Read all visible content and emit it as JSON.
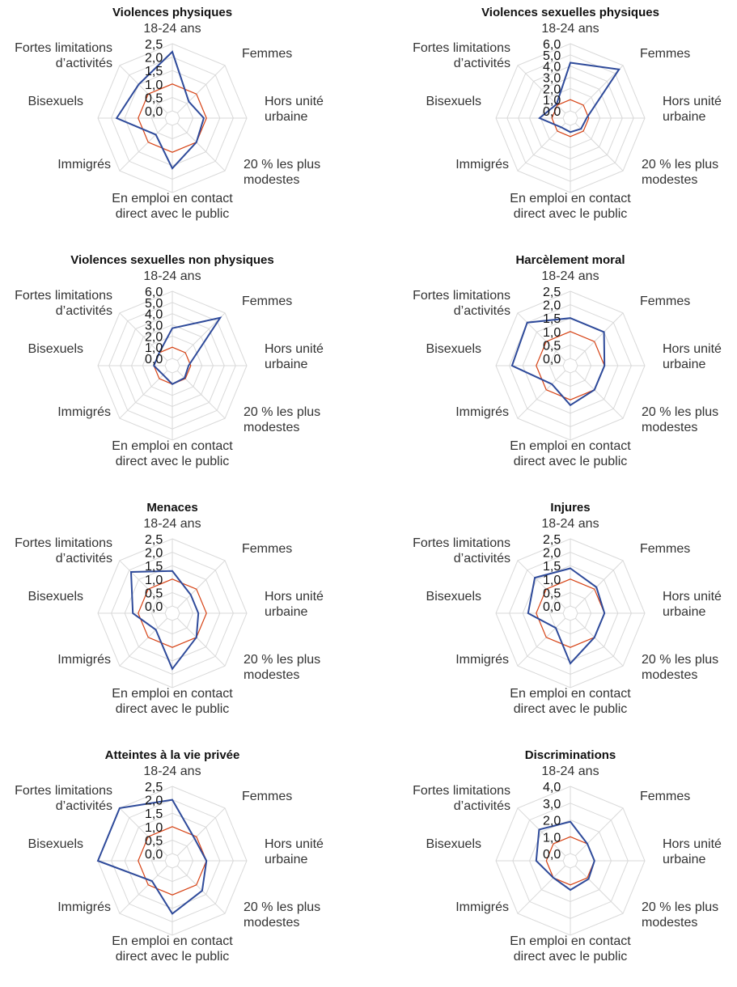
{
  "colors": {
    "series_main": "#2e4a9a",
    "series_ref": "#d84315",
    "grid": "#d9d9d9"
  },
  "axis_labels": [
    [
      "18-24 ans"
    ],
    [
      "Femmes"
    ],
    [
      "Hors unité",
      "urbaine"
    ],
    [
      "20 % les plus",
      "modestes"
    ],
    [
      "En emploi en contact",
      "direct avec le public"
    ],
    [
      "Immigrés"
    ],
    [
      "Bisexuels"
    ],
    [
      "Fortes limitations",
      "d’activités"
    ]
  ],
  "chart_data": [
    {
      "type": "radar",
      "title": "Violences physiques",
      "ticks": [
        "0,0",
        "0,5",
        "1,0",
        "1,5",
        "2,0",
        "2,5"
      ],
      "rmax": 2.5,
      "series": [
        {
          "values": [
            2.2,
            0.6,
            0.9,
            1.0,
            1.6,
            0.6,
            1.8,
            1.5
          ]
        },
        {
          "values": [
            1,
            1,
            1,
            1,
            1,
            1,
            1,
            1
          ]
        }
      ]
    },
    {
      "type": "radar",
      "title": "Violences sexuelles physiques",
      "ticks": [
        "0,0",
        "1,0",
        "2,0",
        "3,0",
        "4,0",
        "5,0",
        "6,0"
      ],
      "rmax": 6.0,
      "series": [
        {
          "values": [
            4.3,
            5.5,
            0.8,
            0.7,
            0.6,
            0.5,
            2.1,
            1.1
          ]
        },
        {
          "values": [
            1,
            1,
            1,
            1,
            1,
            1,
            1,
            1
          ]
        }
      ]
    },
    {
      "type": "radar",
      "title": "Violences sexuelles non physiques",
      "ticks": [
        "0,0",
        "1,0",
        "2,0",
        "3,0",
        "4,0",
        "5,0",
        "6,0"
      ],
      "rmax": 6.0,
      "series": [
        {
          "values": [
            2.7,
            5.4,
            0.8,
            0.9,
            1.0,
            0.5,
            1.0,
            1.0
          ]
        },
        {
          "values": [
            1,
            1,
            1,
            1,
            1,
            1,
            1,
            1
          ]
        }
      ]
    },
    {
      "type": "radar",
      "title": "Harcèlement moral",
      "ticks": [
        "0,0",
        "0,5",
        "1,0",
        "1,5",
        "2,0",
        "2,5"
      ],
      "rmax": 2.5,
      "series": [
        {
          "values": [
            1.5,
            1.5,
            1.0,
            1.0,
            1.2,
            0.7,
            1.9,
            2.0
          ]
        },
        {
          "values": [
            1,
            1,
            1,
            1,
            1,
            1,
            1,
            1
          ]
        }
      ]
    },
    {
      "type": "radar",
      "title": "Menaces",
      "ticks": [
        "0,0",
        "0,5",
        "1,0",
        "1,5",
        "2,0",
        "2,5"
      ],
      "rmax": 2.5,
      "series": [
        {
          "values": [
            1.3,
            0.7,
            0.7,
            1.0,
            1.8,
            0.6,
            1.2,
            1.9
          ]
        },
        {
          "values": [
            1,
            1,
            1,
            1,
            1,
            1,
            1,
            1
          ]
        }
      ]
    },
    {
      "type": "radar",
      "title": "Injures",
      "ticks": [
        "0,0",
        "0,5",
        "1,0",
        "1,5",
        "2,0",
        "2,5"
      ],
      "rmax": 2.5,
      "series": [
        {
          "values": [
            1.4,
            1.1,
            1.0,
            1.0,
            1.6,
            0.5,
            1.3,
            1.6
          ]
        },
        {
          "values": [
            1,
            1,
            1,
            1,
            1,
            1,
            1,
            1
          ]
        }
      ]
    },
    {
      "type": "radar",
      "title": "Atteintes à la vie privée",
      "ticks": [
        "0,0",
        "0,5",
        "1,0",
        "1,5",
        "2,0",
        "2,5"
      ],
      "rmax": 2.5,
      "series": [
        {
          "values": [
            2.0,
            0.9,
            1.0,
            1.3,
            1.7,
            0.8,
            2.6,
            2.8
          ]
        },
        {
          "values": [
            1,
            1,
            1,
            1,
            1,
            1,
            1,
            1
          ]
        }
      ]
    },
    {
      "type": "radar",
      "title": "Discriminations",
      "ticks": [
        "0,0",
        "1,0",
        "2,0",
        "3,0",
        "4,0"
      ],
      "rmax": 4.0,
      "series": [
        {
          "values": [
            1.9,
            1.0,
            1.0,
            1.1,
            1.3,
            1.0,
            1.6,
            2.2
          ]
        },
        {
          "values": [
            1,
            1,
            1,
            1,
            1,
            1,
            1,
            1
          ]
        }
      ]
    }
  ]
}
